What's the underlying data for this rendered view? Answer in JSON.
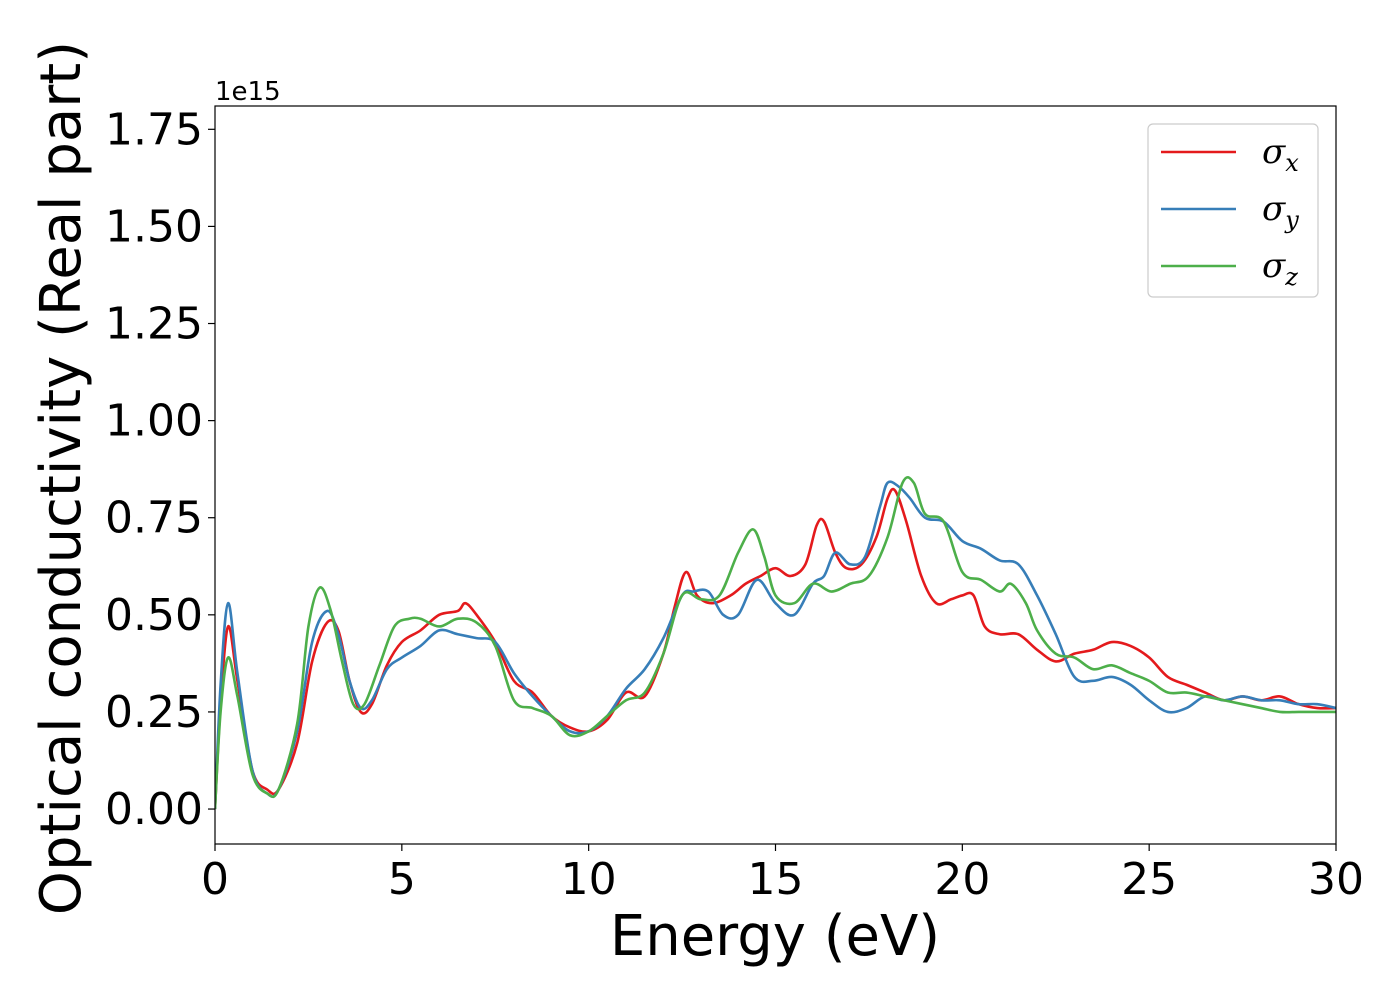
{
  "chart_data": {
    "type": "line",
    "xlabel": "Energy (eV)",
    "ylabel": "Optical conductivity (Real part)",
    "y_offset_label": "1e15",
    "y_scale_factor": 1000000000000000.0,
    "xlim": [
      0,
      30
    ],
    "ylim": [
      -0.09,
      1.81
    ],
    "xticks": [
      0,
      5,
      10,
      15,
      20,
      25,
      30
    ],
    "xtick_labels": [
      "0",
      "5",
      "10",
      "15",
      "20",
      "25",
      "30"
    ],
    "yticks": [
      0.0,
      0.25,
      0.5,
      0.75,
      1.0,
      1.25,
      1.5,
      1.75
    ],
    "ytick_labels": [
      "0.00",
      "0.25",
      "0.50",
      "0.75",
      "1.00",
      "1.25",
      "1.50",
      "1.75"
    ],
    "grid": false,
    "legend_position": "top-right",
    "series": [
      {
        "name": "σx",
        "legend_base": "σ",
        "legend_sub": "x",
        "color": "#e41a1c",
        "x": [
          0,
          0.15,
          0.35,
          0.6,
          1.0,
          1.4,
          1.7,
          2.2,
          2.6,
          3.0,
          3.3,
          3.6,
          3.9,
          4.2,
          4.6,
          5.0,
          5.5,
          6.0,
          6.5,
          6.7,
          7.0,
          7.5,
          8.0,
          8.5,
          9.0,
          9.5,
          10.0,
          10.5,
          11.0,
          11.5,
          12.0,
          12.3,
          12.6,
          12.9,
          13.3,
          13.8,
          14.2,
          14.6,
          15.0,
          15.4,
          15.8,
          16.1,
          16.3,
          16.6,
          16.9,
          17.3,
          17.7,
          18.0,
          18.2,
          18.5,
          18.9,
          19.3,
          19.7,
          20.0,
          20.3,
          20.6,
          21.0,
          21.5,
          22.0,
          22.5,
          23.0,
          23.5,
          24.0,
          24.5,
          25.0,
          25.5,
          26.0,
          26.5,
          27.0,
          27.5,
          28.0,
          28.5,
          29.0,
          29.5,
          30.0
        ],
        "y": [
          0.0,
          0.27,
          0.47,
          0.33,
          0.1,
          0.05,
          0.05,
          0.17,
          0.38,
          0.48,
          0.46,
          0.33,
          0.25,
          0.27,
          0.37,
          0.43,
          0.46,
          0.5,
          0.51,
          0.53,
          0.5,
          0.43,
          0.33,
          0.3,
          0.24,
          0.21,
          0.2,
          0.23,
          0.3,
          0.29,
          0.4,
          0.52,
          0.61,
          0.55,
          0.53,
          0.55,
          0.58,
          0.6,
          0.62,
          0.6,
          0.63,
          0.73,
          0.74,
          0.66,
          0.62,
          0.63,
          0.7,
          0.8,
          0.82,
          0.74,
          0.6,
          0.53,
          0.54,
          0.55,
          0.55,
          0.47,
          0.45,
          0.45,
          0.41,
          0.38,
          0.4,
          0.41,
          0.43,
          0.42,
          0.39,
          0.34,
          0.32,
          0.3,
          0.28,
          0.29,
          0.28,
          0.29,
          0.27,
          0.26,
          0.26
        ]
      },
      {
        "name": "σy",
        "legend_base": "σ",
        "legend_sub": "y",
        "color": "#377eb8",
        "x": [
          0,
          0.15,
          0.35,
          0.6,
          1.0,
          1.4,
          1.7,
          2.2,
          2.6,
          3.0,
          3.3,
          3.6,
          3.9,
          4.2,
          4.6,
          5.0,
          5.5,
          6.0,
          6.5,
          7.0,
          7.5,
          8.0,
          8.5,
          9.0,
          9.5,
          10.0,
          10.5,
          11.0,
          11.5,
          12.0,
          12.5,
          12.8,
          13.2,
          13.6,
          14.0,
          14.5,
          15.0,
          15.5,
          16.0,
          16.3,
          16.6,
          17.0,
          17.4,
          17.8,
          18.0,
          18.3,
          18.6,
          19.0,
          19.5,
          20.0,
          20.5,
          21.0,
          21.5,
          22.0,
          22.5,
          23.0,
          23.5,
          24.0,
          24.5,
          25.0,
          25.5,
          26.0,
          26.5,
          27.0,
          27.5,
          28.0,
          28.5,
          29.0,
          29.5,
          30.0
        ],
        "y": [
          0.0,
          0.32,
          0.53,
          0.35,
          0.1,
          0.04,
          0.05,
          0.2,
          0.43,
          0.51,
          0.45,
          0.33,
          0.26,
          0.28,
          0.36,
          0.39,
          0.42,
          0.46,
          0.45,
          0.44,
          0.43,
          0.35,
          0.29,
          0.24,
          0.2,
          0.2,
          0.24,
          0.31,
          0.36,
          0.44,
          0.55,
          0.56,
          0.56,
          0.5,
          0.5,
          0.59,
          0.53,
          0.5,
          0.58,
          0.6,
          0.66,
          0.63,
          0.65,
          0.78,
          0.84,
          0.83,
          0.8,
          0.75,
          0.74,
          0.69,
          0.67,
          0.64,
          0.63,
          0.55,
          0.45,
          0.34,
          0.33,
          0.34,
          0.32,
          0.28,
          0.25,
          0.26,
          0.29,
          0.28,
          0.29,
          0.28,
          0.28,
          0.27,
          0.27,
          0.26
        ]
      },
      {
        "name": "σz",
        "legend_base": "σ",
        "legend_sub": "z",
        "color": "#4daf4a",
        "x": [
          0,
          0.15,
          0.35,
          0.6,
          1.0,
          1.4,
          1.7,
          2.2,
          2.5,
          2.8,
          3.1,
          3.4,
          3.7,
          4.0,
          4.4,
          4.8,
          5.2,
          5.5,
          6.0,
          6.5,
          7.0,
          7.5,
          8.0,
          8.5,
          9.0,
          9.5,
          10.0,
          10.5,
          11.0,
          11.5,
          12.0,
          12.5,
          13.0,
          13.5,
          14.0,
          14.4,
          14.7,
          15.0,
          15.5,
          16.0,
          16.5,
          17.0,
          17.5,
          18.0,
          18.4,
          18.7,
          19.0,
          19.5,
          20.0,
          20.5,
          21.0,
          21.3,
          21.7,
          22.0,
          22.5,
          23.0,
          23.5,
          24.0,
          24.5,
          25.0,
          25.5,
          26.0,
          26.5,
          27.0,
          27.5,
          28.0,
          28.5,
          29.0,
          29.5,
          30.0
        ],
        "y": [
          0.0,
          0.25,
          0.39,
          0.29,
          0.09,
          0.04,
          0.05,
          0.22,
          0.47,
          0.57,
          0.51,
          0.38,
          0.27,
          0.27,
          0.37,
          0.47,
          0.49,
          0.49,
          0.47,
          0.49,
          0.48,
          0.42,
          0.28,
          0.26,
          0.24,
          0.19,
          0.2,
          0.24,
          0.28,
          0.3,
          0.4,
          0.55,
          0.54,
          0.55,
          0.66,
          0.72,
          0.65,
          0.55,
          0.53,
          0.58,
          0.56,
          0.58,
          0.6,
          0.7,
          0.84,
          0.84,
          0.76,
          0.74,
          0.61,
          0.59,
          0.56,
          0.58,
          0.53,
          0.46,
          0.4,
          0.39,
          0.36,
          0.37,
          0.35,
          0.33,
          0.3,
          0.3,
          0.29,
          0.28,
          0.27,
          0.26,
          0.25,
          0.25,
          0.25,
          0.25
        ]
      }
    ]
  }
}
